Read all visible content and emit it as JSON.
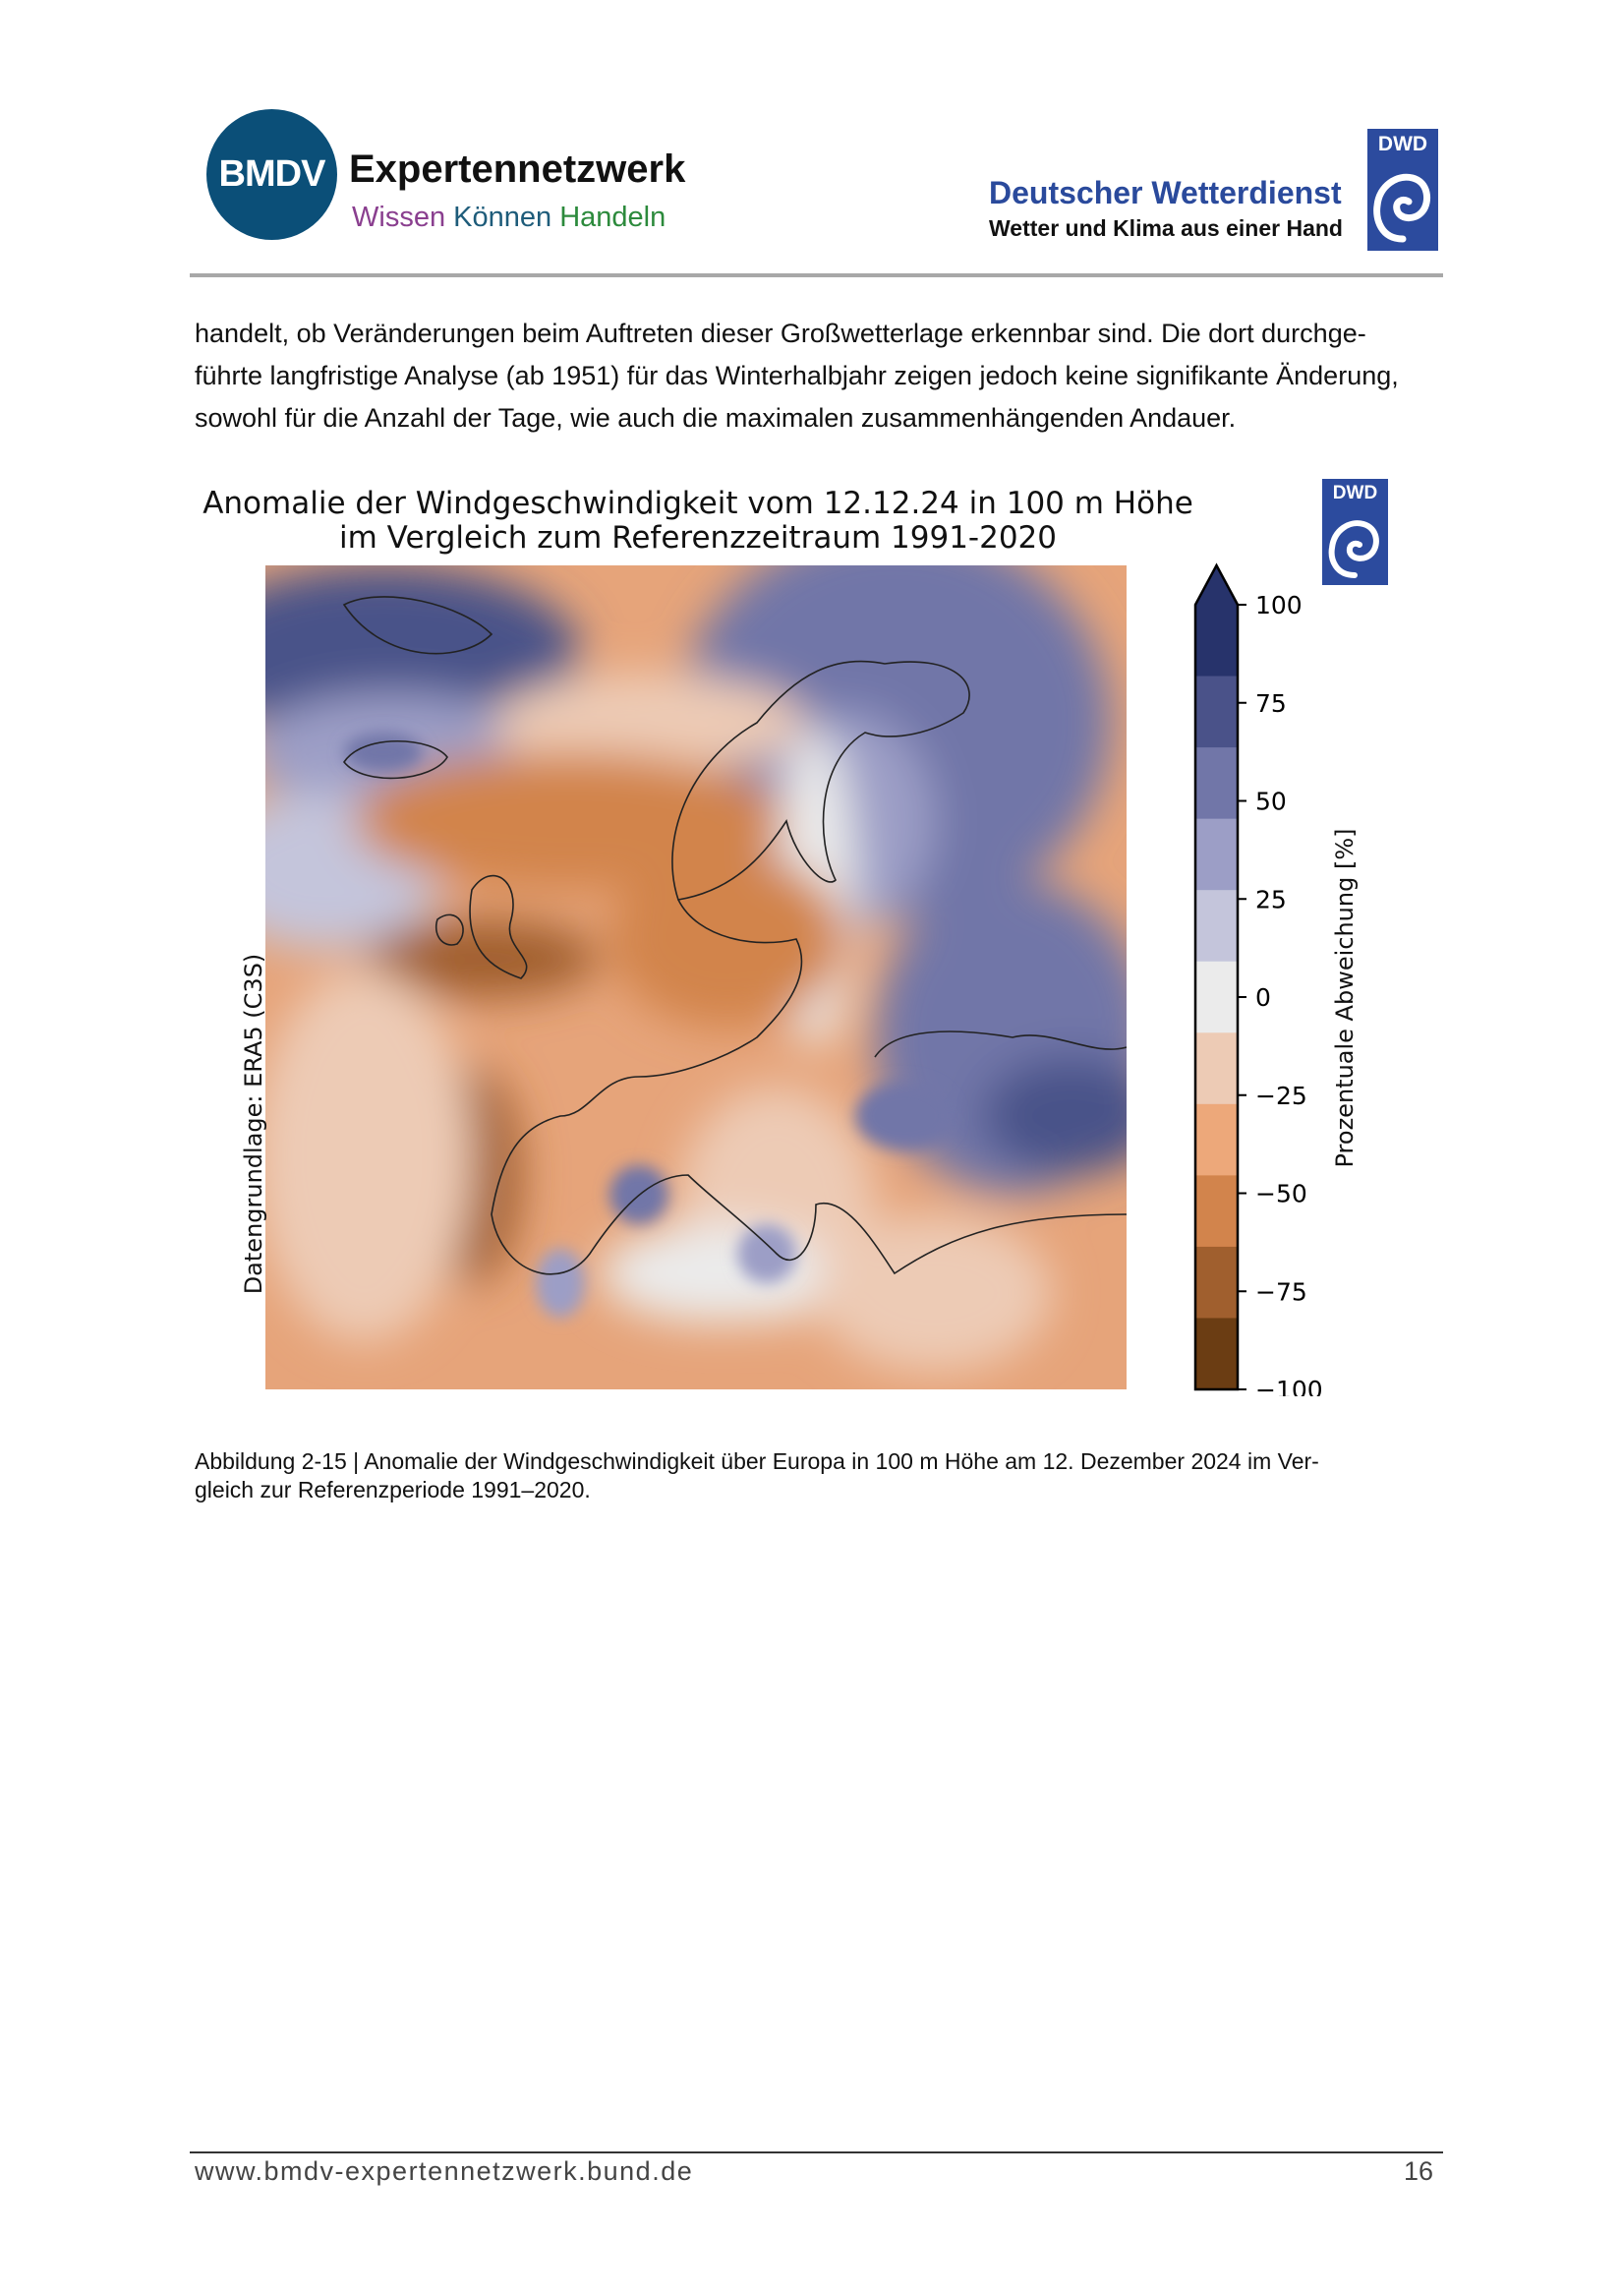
{
  "header": {
    "bmdv_logo": "BMDV",
    "bmdv_title": "Expertennetzwerk",
    "bmdv_sub": [
      "Wissen",
      "Können",
      "Handeln"
    ],
    "dwd_name": "Deutscher Wetterdienst",
    "dwd_claim": "Wetter und Klima aus einer Hand",
    "dwd_logo": "DWD"
  },
  "body": {
    "lines": [
      "handelt, ob Veränderungen beim Auftreten dieser Großwetterlage erkennbar sind. Die dort durchge-",
      "führte langfristige Analyse (ab 1951) für das Winterhalbjahr zeigen jedoch keine signifikante Änderung,",
      "sowohl für die Anzahl der Tage, wie auch die maximalen zusammenhängenden Andauer."
    ]
  },
  "figure": {
    "logo": "DWD",
    "source_label": "Datengrundlage: ERA5 (C3S)",
    "caption": [
      "Abbildung 2-15 | Anomalie der Windgeschwindigkeit über Europa in 100 m Höhe am 12. Dezember 2024 im Ver-",
      "gleich zur Referenzperiode 1991–2020."
    ]
  },
  "chart_data": {
    "type": "heatmap",
    "title": "Anomalie der Windgeschwindigkeit vom 12.12.24 in 100 m Höhe",
    "subtitle": "im Vergleich zum Referenzzeitraum 1991-2020",
    "colorbar": {
      "label": "Prozentuale Abweichung [%]",
      "range": [
        -100,
        100
      ],
      "extend": "max",
      "ticks": [
        "100",
        "75",
        "50",
        "25",
        "0",
        "−25",
        "−50",
        "−75",
        "−100"
      ],
      "tick_values": [
        100,
        75,
        50,
        25,
        0,
        -25,
        -50,
        -75,
        -100
      ],
      "colors": [
        "#27336b",
        "#4a5289",
        "#7176a8",
        "#9c9ec6",
        "#c4c5db",
        "#ebebeb",
        "#edcbb5",
        "#eda87a",
        "#d2844c",
        "#a05f2e",
        "#6b3d13"
      ]
    },
    "region": "Europe"
  },
  "footer": {
    "url": "www.bmdv-expertennetzwerk.bund.de",
    "page": "16"
  }
}
